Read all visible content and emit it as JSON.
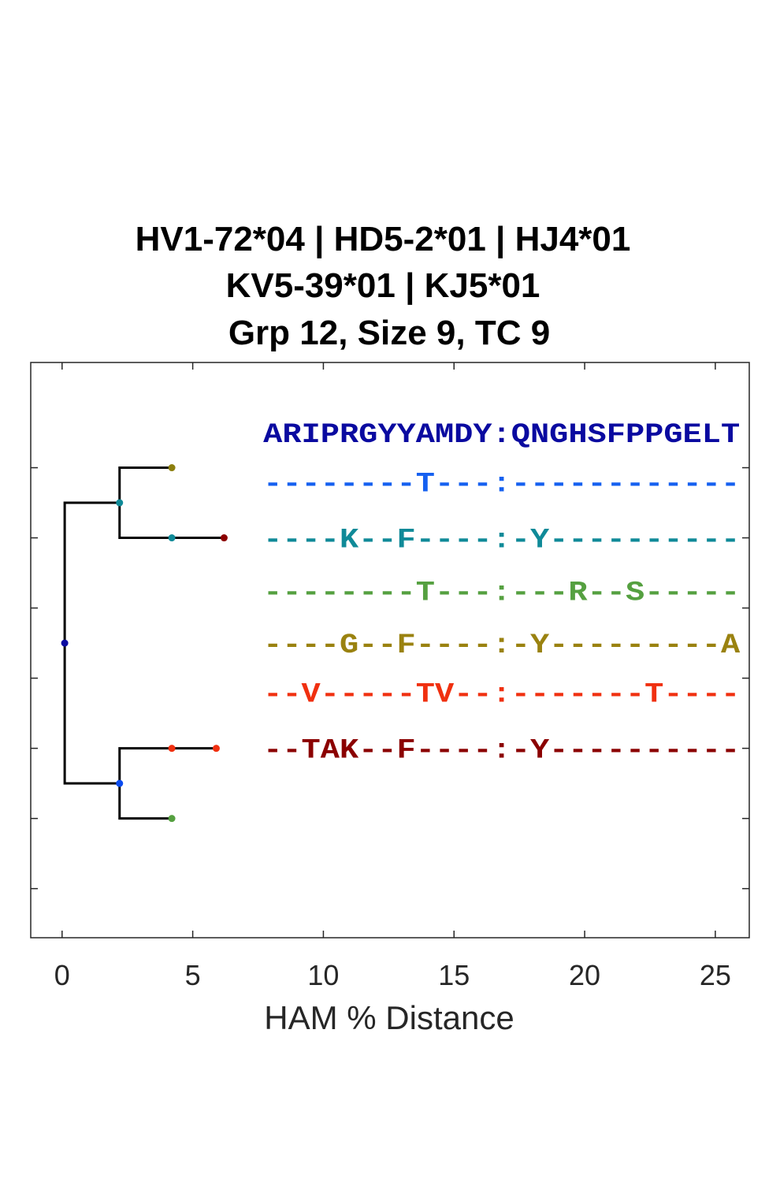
{
  "chart_data": {
    "type": "dendrogram",
    "title_lines": [
      "HV1-72*04 | HD5-2*01 | HJ4*01",
      "KV5-39*01 | KJ5*01",
      "Grp 12, Size 9, TC 9"
    ],
    "xlabel": "HAM % Distance",
    "xlim": [
      -1.2,
      26.3
    ],
    "xticks": [
      0,
      5,
      10,
      15,
      20,
      25
    ],
    "xtick_labels": [
      "0",
      "5",
      "10",
      "15",
      "20",
      "25"
    ],
    "ylim": [
      0.3,
      8.5
    ],
    "yticks": [
      1,
      2,
      3,
      4,
      5,
      6,
      7
    ],
    "grid": false,
    "tree": {
      "nodes": [
        {
          "id": "root",
          "x": 0.1,
          "y": 4.5,
          "color": "#0a0aa0"
        },
        {
          "id": "n1",
          "x": 2.2,
          "y": 6.5,
          "color": "#0f8a98"
        },
        {
          "id": "n2",
          "x": 2.2,
          "y": 2.5,
          "color": "#0b4cf0"
        },
        {
          "id": "L1",
          "x": 4.2,
          "y": 7,
          "color": "#8c7f0e"
        },
        {
          "id": "L2",
          "x": 4.2,
          "y": 6,
          "color": "#0f8a98"
        },
        {
          "id": "L3",
          "x": 6.2,
          "y": 6,
          "color": "#8b0000"
        },
        {
          "id": "L4",
          "x": 4.2,
          "y": 3,
          "color": "#f03010"
        },
        {
          "id": "L5",
          "x": 5.9,
          "y": 3,
          "color": "#f03010"
        },
        {
          "id": "L6",
          "x": 4.2,
          "y": 2,
          "color": "#55a040"
        }
      ],
      "edges": [
        [
          "root",
          "n1"
        ],
        [
          "root",
          "n2"
        ],
        [
          "n1",
          "L1"
        ],
        [
          "n1",
          "L2"
        ],
        [
          "L2",
          "L3"
        ],
        [
          "n2",
          "L4"
        ],
        [
          "L4",
          "L5"
        ],
        [
          "n2",
          "L6"
        ]
      ],
      "line_color": "#000000"
    },
    "sequences": [
      {
        "text": "ARIPRGYYAMDY:QNGHSFPPGELT",
        "color": "#0a0aa0",
        "y": 7.5
      },
      {
        "text": "--------T---:------------",
        "color": "#1560f0",
        "y": 6.8
      },
      {
        "text": "----K--F----:-Y----------",
        "color": "#0f8a98",
        "y": 6.0
      },
      {
        "text": "--------T---:---R--S-----",
        "color": "#55a040",
        "y": 5.25
      },
      {
        "text": "----G--F----:-Y---------A",
        "color": "#9a8210",
        "y": 4.5
      },
      {
        "text": "--V-----TV--:-------T----",
        "color": "#f03010",
        "y": 3.8
      },
      {
        "text": "--TAK--F----:-Y----------",
        "color": "#8b0000",
        "y": 3.0
      }
    ]
  }
}
